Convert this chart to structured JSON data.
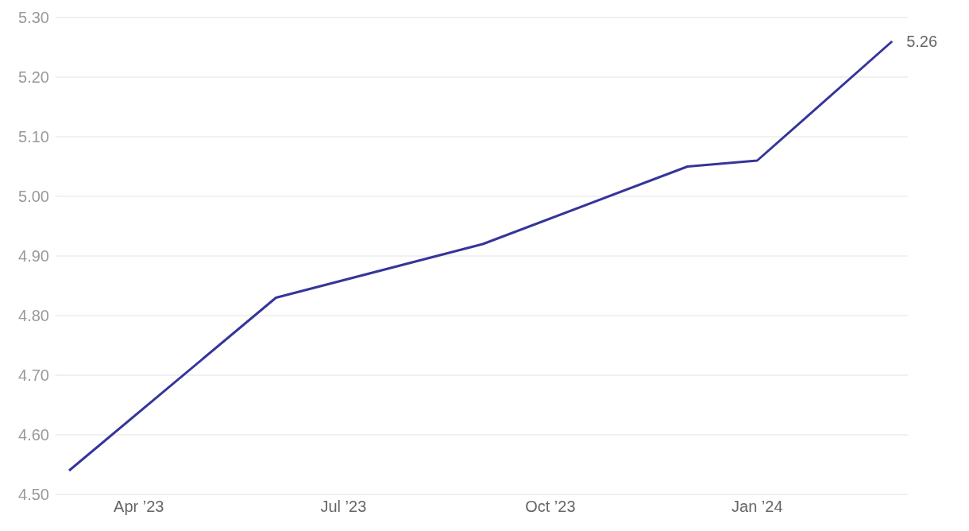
{
  "chart_data": {
    "type": "line",
    "x": [
      "2023-03-01",
      "2023-06-01",
      "2023-09-01",
      "2023-12-01",
      "2024-01-01",
      "2024-03-01"
    ],
    "series": [
      {
        "color": "#35359b",
        "values": [
          4.54,
          4.83,
          4.92,
          5.05,
          5.06,
          5.26
        ],
        "value_labels": [
          null,
          null,
          null,
          null,
          null,
          "5.26"
        ]
      }
    ],
    "xlim": [
      "2023-02-23",
      "2024-03-08"
    ],
    "xticks": [
      {
        "value": "2023-04-01",
        "label": "Apr ’23"
      },
      {
        "value": "2023-07-01",
        "label": "Jul ’23"
      },
      {
        "value": "2023-10-01",
        "label": "Oct ’23"
      },
      {
        "value": "2024-01-01",
        "label": "Jan ’24"
      }
    ],
    "ylim": [
      4.5,
      5.3
    ],
    "yticks": [
      {
        "value": 4.5,
        "label": "4.50"
      },
      {
        "value": 4.6,
        "label": "4.60"
      },
      {
        "value": 4.7,
        "label": "4.70"
      },
      {
        "value": 4.8,
        "label": "4.80"
      },
      {
        "value": 4.9,
        "label": "4.90"
      },
      {
        "value": 5.0,
        "label": "5.00"
      },
      {
        "value": 5.1,
        "label": "5.10"
      },
      {
        "value": 5.2,
        "label": "5.20"
      },
      {
        "value": 5.3,
        "label": "5.30"
      }
    ],
    "grid": "y",
    "legend": false,
    "marker": "none",
    "line_style": "solid"
  }
}
